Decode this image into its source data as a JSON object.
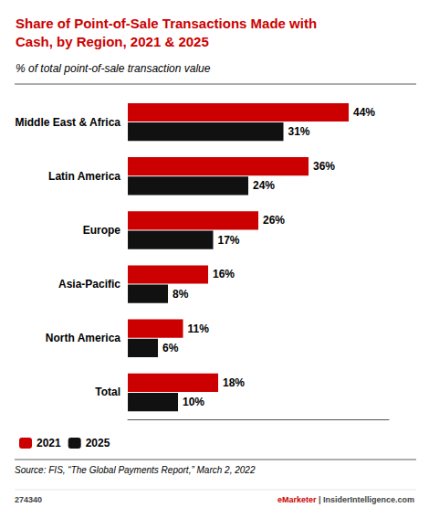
{
  "chart_data": {
    "type": "bar",
    "orientation": "horizontal",
    "title": "Share of Point-of-Sale Transactions Made with\nCash, by Region, 2021 & 2025",
    "subtitle": "% of total point-of-sale transaction value",
    "categories": [
      "Middle East & Africa",
      "Latin America",
      "Europe",
      "Asia-Pacific",
      "North America",
      "Total"
    ],
    "series": [
      {
        "name": "2021",
        "color": "#cc0000",
        "values": [
          44,
          36,
          26,
          16,
          11,
          18
        ],
        "value_labels": [
          "44%",
          "36%",
          "26%",
          "16%",
          "11%",
          "18%"
        ]
      },
      {
        "name": "2025",
        "color": "#111111",
        "values": [
          31,
          24,
          17,
          8,
          6,
          10
        ],
        "value_labels": [
          "31%",
          "24%",
          "17%",
          "8%",
          "6%",
          "10%"
        ]
      }
    ],
    "xlim": [
      0,
      52
    ],
    "data_labels": true,
    "tick_labels": "y",
    "grid": false,
    "legend": "lower left",
    "annotations": [
      "Source: FIS, “The Global Payments Report,” March 2, 2022",
      "274340",
      "eMarketer",
      "| InsiderIntelligence.com"
    ]
  }
}
